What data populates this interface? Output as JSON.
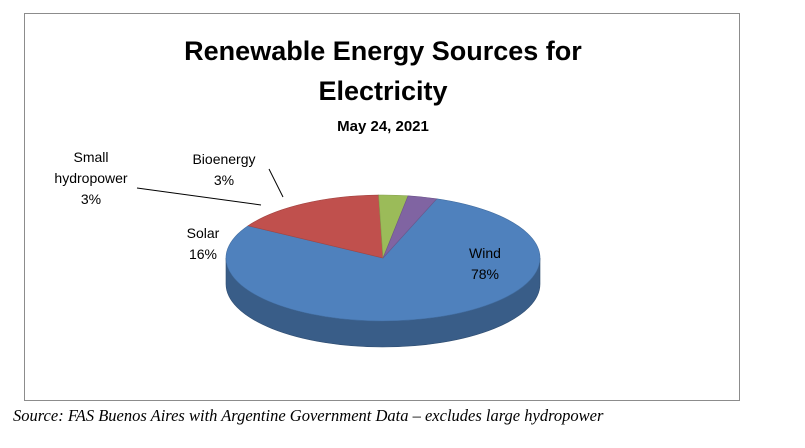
{
  "chart_data": {
    "type": "pie",
    "title_line1": "Renewable Energy Sources for",
    "title_line2": "Electricity",
    "subtitle": "May 24, 2021",
    "slices": [
      {
        "name": "Wind",
        "value": 78,
        "label": "78%",
        "color": "#4f81bd"
      },
      {
        "name": "Solar",
        "value": 16,
        "label": "16%",
        "color": "#c0504d"
      },
      {
        "name": "Small hydropower",
        "value": 3,
        "label": "3%",
        "color": "#9bbb59"
      },
      {
        "name": "Bioenergy",
        "value": 3,
        "label": "3%",
        "color": "#8064a2"
      }
    ],
    "style": "3d"
  },
  "source_note": "Source: FAS Buenos Aires with Argentine Government Data – excludes large hydropower"
}
